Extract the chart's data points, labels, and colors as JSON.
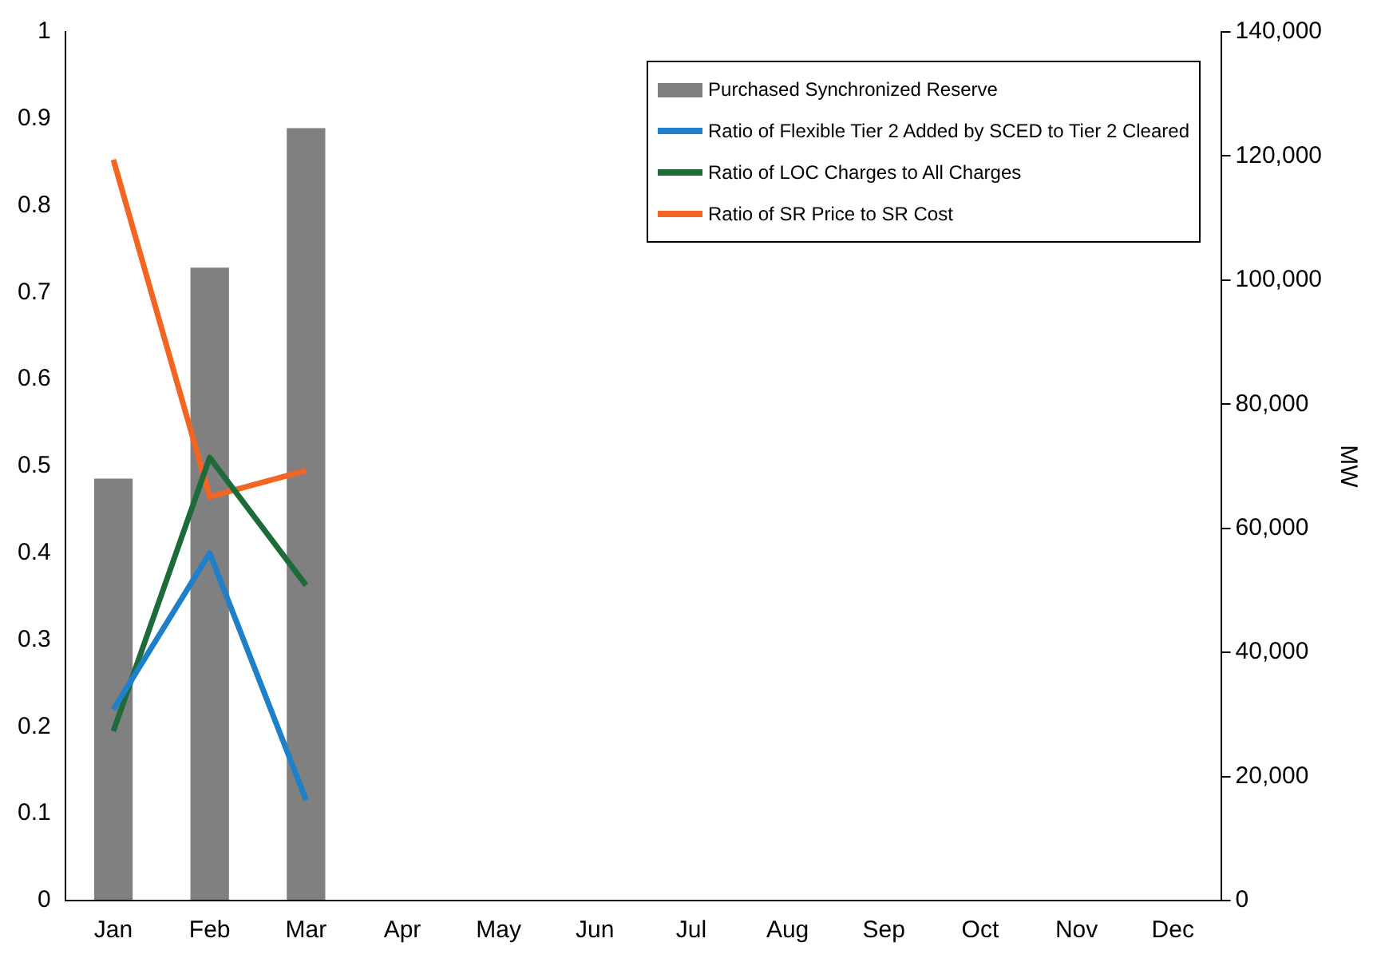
{
  "chart_data": {
    "type": "bar",
    "categories": [
      "Jan",
      "Feb",
      "Mar",
      "Apr",
      "May",
      "Jun",
      "Jul",
      "Aug",
      "Sep",
      "Oct",
      "Nov",
      "Dec"
    ],
    "series": [
      {
        "name": "Purchased Synchronized Reserve",
        "axis": "y2",
        "color": "#808080",
        "values": [
          68000,
          102000,
          124500,
          null,
          null,
          null,
          null,
          null,
          null,
          null,
          null,
          null
        ]
      },
      {
        "name": "Ratio of Flexible Tier 2 Added by SCED to Tier 2 Cleared",
        "type": "line",
        "color": "#1f7fc8",
        "values": [
          0.22,
          0.4,
          0.116,
          null,
          null,
          null,
          null,
          null,
          null,
          null,
          null,
          null
        ]
      },
      {
        "name": "Ratio of LOC Charges to All Charges",
        "type": "line",
        "color": "#1e6b3a",
        "values": [
          0.195,
          0.51,
          0.363,
          null,
          null,
          null,
          null,
          null,
          null,
          null,
          null,
          null
        ]
      },
      {
        "name": "Ratio of SR Price to SR Cost",
        "type": "line",
        "color": "#f26522",
        "values": [
          0.853,
          0.465,
          0.495,
          null,
          null,
          null,
          null,
          null,
          null,
          null,
          null,
          null
        ]
      }
    ],
    "y2label": "MW",
    "ylim": [
      0,
      1
    ],
    "yticks": [
      0,
      0.1,
      0.2,
      0.3,
      0.4,
      0.5,
      0.6,
      0.7,
      0.8,
      0.9,
      1
    ],
    "y2lim": [
      0,
      140000
    ],
    "y2ticks": [
      0,
      {
        "value": 20000,
        "label": "20,000"
      },
      {
        "value": 40000,
        "label": "40,000"
      },
      {
        "value": 60000,
        "label": "60,000"
      },
      {
        "value": 80000,
        "label": "80,000"
      },
      {
        "value": 100000,
        "label": "100,000"
      },
      {
        "value": 120000,
        "label": "120,000"
      },
      {
        "value": 140000,
        "label": "140,000"
      }
    ],
    "legend": "top right",
    "grid": false,
    "marker": "none",
    "line_style": "solid"
  }
}
